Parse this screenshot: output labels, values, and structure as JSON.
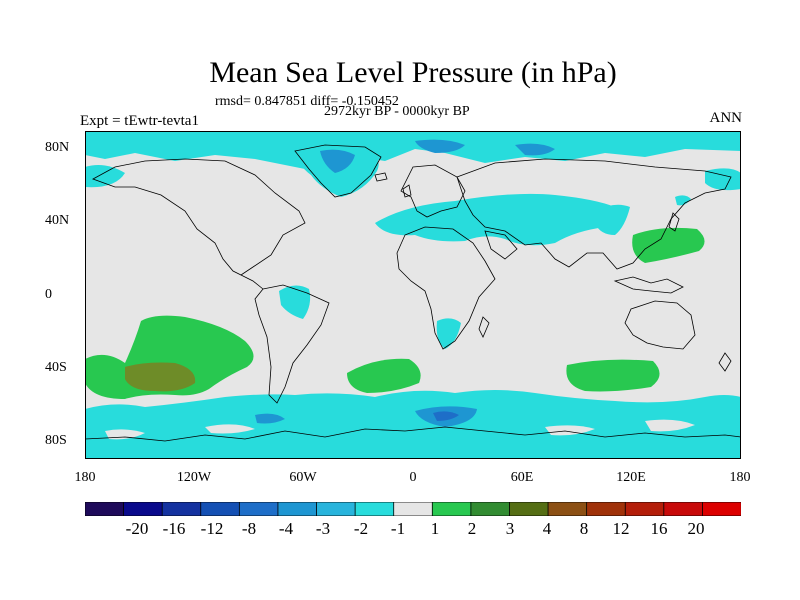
{
  "title": "Mean Sea Level Pressure (in hPa)",
  "stats_line": "rmsd= 0.847851  diff= -0.150452",
  "period_line": "2972kyr BP - 0000kyr BP",
  "experiment_label": "Expt = tEwtr-tevta1",
  "season_label": "ANN",
  "lat_labels": [
    "80N",
    "40N",
    "0",
    "40S",
    "80S"
  ],
  "lon_labels": [
    "180",
    "120W",
    "60W",
    "0",
    "60E",
    "120E",
    "180"
  ],
  "colorbar": {
    "labels": [
      "-20",
      "-16",
      "-12",
      "-8",
      "-4",
      "-3",
      "-2",
      "-1",
      "1",
      "2",
      "3",
      "4",
      "8",
      "12",
      "16",
      "20"
    ],
    "colors": [
      "#1e0a5a",
      "#0a0a8c",
      "#1432a0",
      "#1450b4",
      "#1e6ec8",
      "#1e96d2",
      "#28b4dc",
      "#28dcdc",
      "#e6e6e6",
      "#28c850",
      "#328c32",
      "#556e14",
      "#8c5014",
      "#a0320a",
      "#b41e0a",
      "#c80a0a",
      "#dc0000"
    ]
  },
  "colors": {
    "background": "#e6e6e6",
    "coast": "#000000",
    "anomaly_neg1": "#28dcdc",
    "anomaly_neg2": "#28b4dc",
    "anomaly_neg3": "#1e96d2",
    "anomaly_pos1": "#28c850",
    "anomaly_pos2": "#6e8c28"
  }
}
